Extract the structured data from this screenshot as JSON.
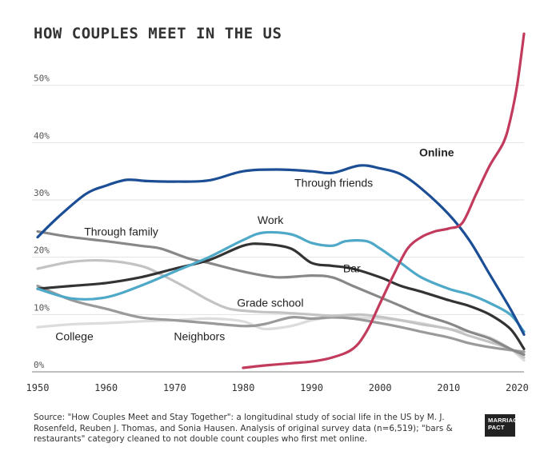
{
  "chart_data": {
    "type": "line",
    "title": "HOW COUPLES MEET IN THE US",
    "xlabel": "",
    "ylabel": "",
    "xlim": [
      1950,
      2021
    ],
    "ylim": [
      0,
      60
    ],
    "x_ticks": [
      1950,
      1960,
      1970,
      1980,
      1990,
      2000,
      2010,
      2020
    ],
    "y_ticks": [
      {
        "value": 0,
        "label": "0%"
      },
      {
        "value": 10,
        "label": "10%"
      },
      {
        "value": 20,
        "label": "20%"
      },
      {
        "value": 30,
        "label": "30%"
      },
      {
        "value": 40,
        "label": "40%"
      },
      {
        "value": 50,
        "label": "50%"
      }
    ],
    "grid": {
      "horizontal": true,
      "vertical": false
    },
    "series": [
      {
        "name": "Through friends",
        "color": "#1c4e96",
        "points": [
          [
            1950,
            23.5
          ],
          [
            1953,
            27
          ],
          [
            1957,
            31
          ],
          [
            1960,
            32.5
          ],
          [
            1963,
            33.5
          ],
          [
            1966,
            33.3
          ],
          [
            1970,
            33.2
          ],
          [
            1975,
            33.4
          ],
          [
            1980,
            35
          ],
          [
            1985,
            35.3
          ],
          [
            1990,
            35
          ],
          [
            1993,
            34.7
          ],
          [
            1997,
            36
          ],
          [
            2000,
            35.5
          ],
          [
            2003,
            34.5
          ],
          [
            2006,
            32
          ],
          [
            2010,
            27.5
          ],
          [
            2013,
            23
          ],
          [
            2016,
            17
          ],
          [
            2019,
            11
          ],
          [
            2021,
            6.5
          ]
        ]
      },
      {
        "name": "Online",
        "color": "#c23a5c",
        "points": [
          [
            1980,
            0.7
          ],
          [
            1983,
            1.1
          ],
          [
            1987,
            1.5
          ],
          [
            1990,
            1.8
          ],
          [
            1993,
            2.5
          ],
          [
            1996,
            4
          ],
          [
            1998,
            7
          ],
          [
            2000,
            12
          ],
          [
            2002,
            17
          ],
          [
            2004,
            21.5
          ],
          [
            2006,
            23.5
          ],
          [
            2008,
            24.5
          ],
          [
            2010,
            25
          ],
          [
            2012,
            26
          ],
          [
            2014,
            31
          ],
          [
            2016,
            36
          ],
          [
            2018,
            40
          ],
          [
            2019,
            44
          ],
          [
            2020,
            50
          ],
          [
            2021,
            59
          ]
        ]
      },
      {
        "name": "Work",
        "color": "#4ea8c8",
        "points": [
          [
            1950,
            14.5
          ],
          [
            1955,
            12.8
          ],
          [
            1960,
            13
          ],
          [
            1965,
            15
          ],
          [
            1970,
            17.5
          ],
          [
            1975,
            20
          ],
          [
            1980,
            23
          ],
          [
            1983,
            24.3
          ],
          [
            1987,
            24
          ],
          [
            1990,
            22.5
          ],
          [
            1993,
            22
          ],
          [
            1995,
            22.8
          ],
          [
            1998,
            22.8
          ],
          [
            2000,
            21.5
          ],
          [
            2003,
            19
          ],
          [
            2006,
            16.5
          ],
          [
            2010,
            14.5
          ],
          [
            2013,
            13.5
          ],
          [
            2016,
            12
          ],
          [
            2019,
            10
          ],
          [
            2021,
            7
          ]
        ]
      },
      {
        "name": "Bar",
        "color": "#333333",
        "points": [
          [
            1950,
            14.5
          ],
          [
            1955,
            15
          ],
          [
            1960,
            15.5
          ],
          [
            1965,
            16.5
          ],
          [
            1970,
            18
          ],
          [
            1975,
            19.5
          ],
          [
            1980,
            22
          ],
          [
            1983,
            22.3
          ],
          [
            1987,
            21.5
          ],
          [
            1990,
            19
          ],
          [
            1993,
            18.5
          ],
          [
            1996,
            18
          ],
          [
            2000,
            16.5
          ],
          [
            2003,
            15
          ],
          [
            2006,
            14
          ],
          [
            2010,
            12.5
          ],
          [
            2013,
            11.5
          ],
          [
            2016,
            10
          ],
          [
            2019,
            7.5
          ],
          [
            2021,
            4
          ]
        ]
      },
      {
        "name": "Through family",
        "color": "#888888",
        "points": [
          [
            1950,
            24.5
          ],
          [
            1955,
            23.5
          ],
          [
            1960,
            22.8
          ],
          [
            1965,
            22
          ],
          [
            1968,
            21.5
          ],
          [
            1972,
            19.8
          ],
          [
            1975,
            19
          ],
          [
            1980,
            17.5
          ],
          [
            1985,
            16.5
          ],
          [
            1990,
            16.8
          ],
          [
            1993,
            16.5
          ],
          [
            1996,
            15
          ],
          [
            2000,
            13
          ],
          [
            2003,
            11.5
          ],
          [
            2006,
            10
          ],
          [
            2010,
            8.5
          ],
          [
            2013,
            7
          ],
          [
            2016,
            5.8
          ],
          [
            2019,
            4
          ],
          [
            2021,
            3
          ]
        ]
      },
      {
        "name": "Grade school",
        "color": "#c3c3c3",
        "points": [
          [
            1950,
            18
          ],
          [
            1955,
            19.2
          ],
          [
            1960,
            19.4
          ],
          [
            1965,
            18.5
          ],
          [
            1968,
            17
          ],
          [
            1972,
            14.5
          ],
          [
            1975,
            12.5
          ],
          [
            1978,
            11
          ],
          [
            1982,
            10.5
          ],
          [
            1986,
            10.3
          ],
          [
            1990,
            10
          ],
          [
            1993,
            9.8
          ],
          [
            1997,
            10
          ],
          [
            2000,
            9.6
          ],
          [
            2003,
            9
          ],
          [
            2006,
            8.3
          ],
          [
            2010,
            7.5
          ],
          [
            2013,
            6.3
          ],
          [
            2016,
            5.2
          ],
          [
            2019,
            4
          ],
          [
            2021,
            2.5
          ]
        ]
      },
      {
        "name": "Neighbors",
        "color": "#9a9a9a",
        "points": [
          [
            1950,
            15
          ],
          [
            1955,
            12.5
          ],
          [
            1960,
            11
          ],
          [
            1965,
            9.5
          ],
          [
            1970,
            9
          ],
          [
            1975,
            8.5
          ],
          [
            1980,
            8
          ],
          [
            1983,
            8.3
          ],
          [
            1987,
            9.5
          ],
          [
            1990,
            9.3
          ],
          [
            1993,
            9.5
          ],
          [
            1996,
            9.3
          ],
          [
            2000,
            8.5
          ],
          [
            2003,
            7.8
          ],
          [
            2006,
            7
          ],
          [
            2010,
            6
          ],
          [
            2013,
            5
          ],
          [
            2016,
            4.3
          ],
          [
            2019,
            3.8
          ],
          [
            2021,
            3.5
          ]
        ]
      },
      {
        "name": "College",
        "color": "#dcdcdc",
        "points": [
          [
            1950,
            7.8
          ],
          [
            1955,
            8.3
          ],
          [
            1960,
            8.5
          ],
          [
            1965,
            8.8
          ],
          [
            1970,
            9
          ],
          [
            1975,
            9.3
          ],
          [
            1980,
            8.8
          ],
          [
            1983,
            7.5
          ],
          [
            1987,
            8
          ],
          [
            1990,
            9
          ],
          [
            1993,
            9.5
          ],
          [
            1996,
            9.5
          ],
          [
            2000,
            9.3
          ],
          [
            2003,
            9
          ],
          [
            2006,
            8.5
          ],
          [
            2010,
            7.5
          ],
          [
            2013,
            7
          ],
          [
            2016,
            6
          ],
          [
            2019,
            4
          ],
          [
            2021,
            2
          ]
        ]
      }
    ],
    "labels": [
      {
        "series": "Through friends",
        "text": "Through friends",
        "x": 1987.5,
        "y": 32.3
      },
      {
        "series": "Online",
        "text": "Online",
        "x": 2005.7,
        "y": 37.6
      },
      {
        "series": "Work",
        "text": "Work",
        "x": 1982.1,
        "y": 25.8
      },
      {
        "series": "Bar",
        "text": "Bar",
        "x": 1994.6,
        "y": 17.4
      },
      {
        "series": "Through family",
        "text": "Through family",
        "x": 1956.8,
        "y": 23.8
      },
      {
        "series": "Grade school",
        "text": "Grade school",
        "x": 1979.1,
        "y": 11.4
      },
      {
        "series": "Neighbors",
        "text": "Neighbors",
        "x": 1969.9,
        "y": 5.5
      },
      {
        "series": "College",
        "text": "College",
        "x": 1952.6,
        "y": 5.5
      }
    ]
  },
  "source": "Source: \"How Couples Meet and Stay Together\": a longitudinal study of social life in the US by M. J. Rosenfeld, Reuben J. Thomas, and Sonia Hausen. Analysis of original survey data (n=6,519); \"bars & restaurants\" category cleaned to not double count couples who first met online.",
  "logo": "MARRIAGE PACT"
}
